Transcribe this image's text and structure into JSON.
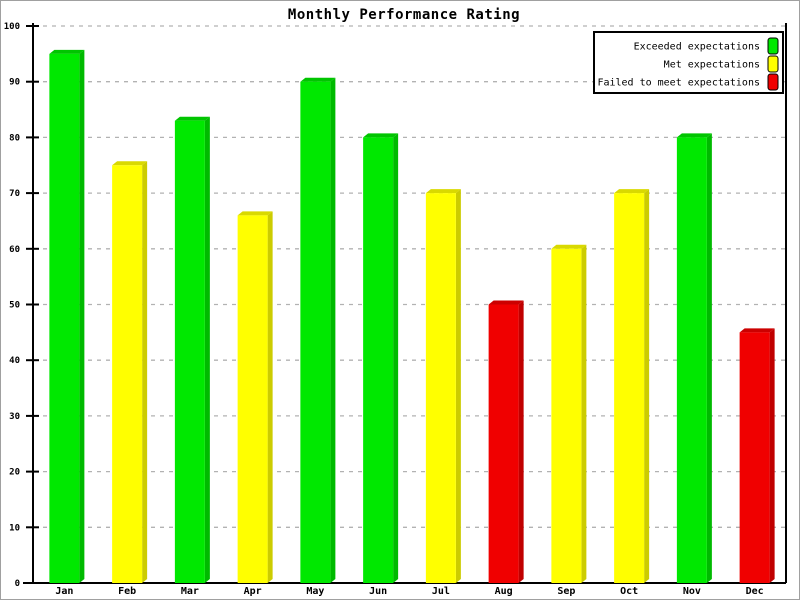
{
  "chart_data": {
    "type": "bar",
    "title": "Monthly Performance Rating",
    "xlabel": "",
    "ylabel": "",
    "categories": [
      "Jan",
      "Feb",
      "Mar",
      "Apr",
      "May",
      "Jun",
      "Jul",
      "Aug",
      "Sep",
      "Oct",
      "Nov",
      "Dec"
    ],
    "values": [
      95,
      75,
      83,
      66,
      90,
      80,
      70,
      50,
      60,
      70,
      80,
      45
    ],
    "bar_ratings": [
      "exceeded",
      "met",
      "exceeded",
      "met",
      "exceeded",
      "exceeded",
      "met",
      "failed",
      "met",
      "met",
      "exceeded",
      "failed"
    ],
    "ylim": [
      0,
      100
    ],
    "yticks": [
      0,
      10,
      20,
      30,
      40,
      50,
      60,
      70,
      80,
      90,
      100
    ],
    "grid": "horizontal-dashed",
    "grid_on": true,
    "legend": {
      "position": "top-right",
      "entries": [
        {
          "key": "exceeded",
          "label": "Exceeded expectations",
          "color": "#00e800"
        },
        {
          "key": "met",
          "label": "Met expectations",
          "color": "#ffff00"
        },
        {
          "key": "failed",
          "label": "Failed to meet expectations",
          "color": "#f00000"
        }
      ]
    },
    "colors": {
      "exceeded_face": "#00e800",
      "met_face": "#ffff00",
      "failed_face": "#f00000",
      "grid_color": "#b2b2b2",
      "axis_color": "#000000",
      "background": "#ffffff",
      "legend_border": "#000000"
    },
    "style": "3d-bevel-bars"
  }
}
